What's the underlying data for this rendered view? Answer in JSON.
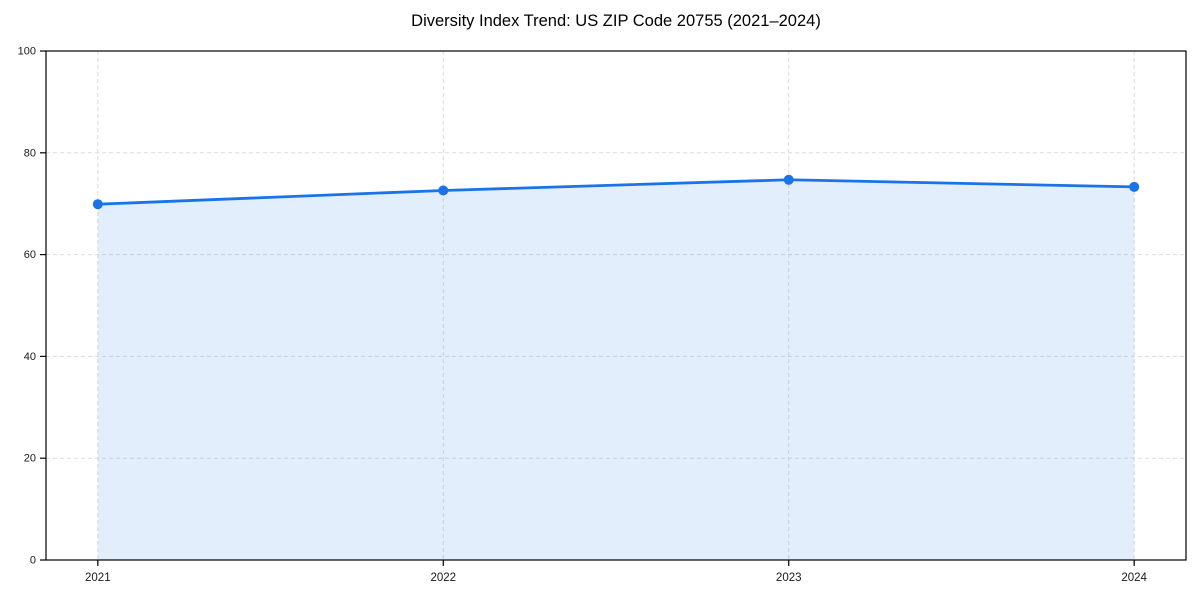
{
  "chart_data": {
    "type": "line",
    "title": "Diversity Index Trend: US ZIP Code 20755 (2021–2024)",
    "x": [
      2021,
      2022,
      2023,
      2024
    ],
    "x_labels": [
      "2021",
      "2022",
      "2023",
      "2024"
    ],
    "values": [
      69.9,
      72.6,
      74.7,
      73.3
    ],
    "xlabel": "",
    "ylabel": "",
    "xlim": [
      2020.85,
      2024.15
    ],
    "ylim": [
      0,
      100
    ],
    "yticks": [
      0,
      20,
      40,
      60,
      80,
      100
    ],
    "grid": true,
    "grid_style": "dashed",
    "legend": false,
    "area_fill": true,
    "marker": "circle",
    "marker_radius": 5,
    "line_width": 2.8,
    "colors": {
      "line": "#1a73e8",
      "marker": "#1a73e8",
      "fill": "rgba(26,115,232,0.12)",
      "grid": "#dcdcdc",
      "axis": "#000000",
      "tick_label": "#1a1a1a",
      "title": "#000000"
    }
  }
}
